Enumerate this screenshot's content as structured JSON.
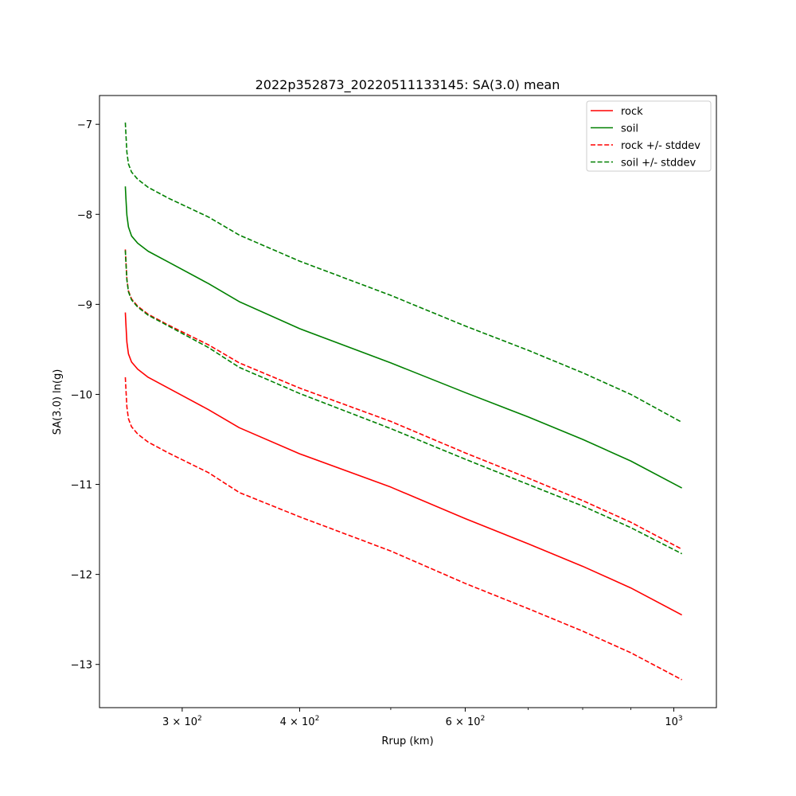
{
  "chart_data": {
    "type": "line",
    "title": "2022p352873_20220511133145: SA(3.0) mean",
    "xlabel": "Rrup (km)",
    "ylabel": "SA(3.0) ln(g)",
    "xscale": "log",
    "xlim": [
      245,
      1110
    ],
    "ylim": [
      -13.48,
      -6.68
    ],
    "grid": false,
    "legend_position": "top-right",
    "x_ticks": [
      {
        "value": 300,
        "base": "3 × 10",
        "exp": "2"
      },
      {
        "value": 400,
        "base": "4 × 10",
        "exp": "2"
      },
      {
        "value": 600,
        "base": "6 × 10",
        "exp": "2"
      },
      {
        "value": 1000,
        "base": "10",
        "exp": "3"
      }
    ],
    "x_minor_ticks": [
      500,
      700,
      800,
      900
    ],
    "y_ticks": [
      {
        "value": -7,
        "label": "−7"
      },
      {
        "value": -8,
        "label": "−8"
      },
      {
        "value": -9,
        "label": "−9"
      },
      {
        "value": -10,
        "label": "−10"
      },
      {
        "value": -11,
        "label": "−11"
      },
      {
        "value": -12,
        "label": "−12"
      },
      {
        "value": -13,
        "label": "−13"
      }
    ],
    "x": [
      261,
      261.4,
      262,
      263,
      265,
      269,
      276,
      290,
      320,
      345,
      400,
      500,
      600,
      700,
      800,
      900,
      1020
    ],
    "series": [
      {
        "name": "rock",
        "color": "#ff0000",
        "dash": false,
        "values": [
          -9.09,
          -9.23,
          -9.42,
          -9.55,
          -9.64,
          -9.72,
          -9.81,
          -9.93,
          -10.17,
          -10.37,
          -10.66,
          -11.03,
          -11.38,
          -11.66,
          -11.91,
          -12.15,
          -12.45
        ]
      },
      {
        "name": "soil",
        "color": "#008000",
        "dash": false,
        "values": [
          -7.69,
          -7.83,
          -8.01,
          -8.14,
          -8.24,
          -8.32,
          -8.41,
          -8.53,
          -8.77,
          -8.97,
          -9.27,
          -9.65,
          -9.98,
          -10.25,
          -10.5,
          -10.74,
          -11.04
        ]
      },
      {
        "name": "rock +/- stddev",
        "color": "#ff0000",
        "dash": true,
        "values": [
          -8.39,
          -8.53,
          -8.72,
          -8.85,
          -8.94,
          -9.02,
          -9.11,
          -9.23,
          -9.45,
          -9.65,
          -9.93,
          -10.3,
          -10.65,
          -10.93,
          -11.18,
          -11.42,
          -11.72
        ]
      },
      {
        "name": "",
        "color": "#ff0000",
        "dash": true,
        "values": [
          -9.81,
          -9.95,
          -10.14,
          -10.27,
          -10.36,
          -10.44,
          -10.53,
          -10.65,
          -10.87,
          -11.09,
          -11.36,
          -11.74,
          -12.1,
          -12.38,
          -12.63,
          -12.87,
          -13.17
        ]
      },
      {
        "name": "soil +/- stddev",
        "color": "#008000",
        "dash": true,
        "values": [
          -6.98,
          -7.12,
          -7.31,
          -7.44,
          -7.53,
          -7.61,
          -7.7,
          -7.82,
          -8.03,
          -8.23,
          -8.52,
          -8.9,
          -9.24,
          -9.51,
          -9.76,
          -10.0,
          -10.31
        ]
      },
      {
        "name": "",
        "color": "#008000",
        "dash": true,
        "values": [
          -8.4,
          -8.54,
          -8.73,
          -8.86,
          -8.95,
          -9.03,
          -9.12,
          -9.24,
          -9.48,
          -9.7,
          -9.99,
          -10.38,
          -10.72,
          -11.0,
          -11.24,
          -11.48,
          -11.77
        ]
      }
    ],
    "legend": [
      {
        "label": "rock",
        "color": "#ff0000",
        "dash": false
      },
      {
        "label": "soil",
        "color": "#008000",
        "dash": false
      },
      {
        "label": "rock +/- stddev",
        "color": "#ff0000",
        "dash": true
      },
      {
        "label": "soil +/- stddev",
        "color": "#008000",
        "dash": true
      }
    ]
  }
}
